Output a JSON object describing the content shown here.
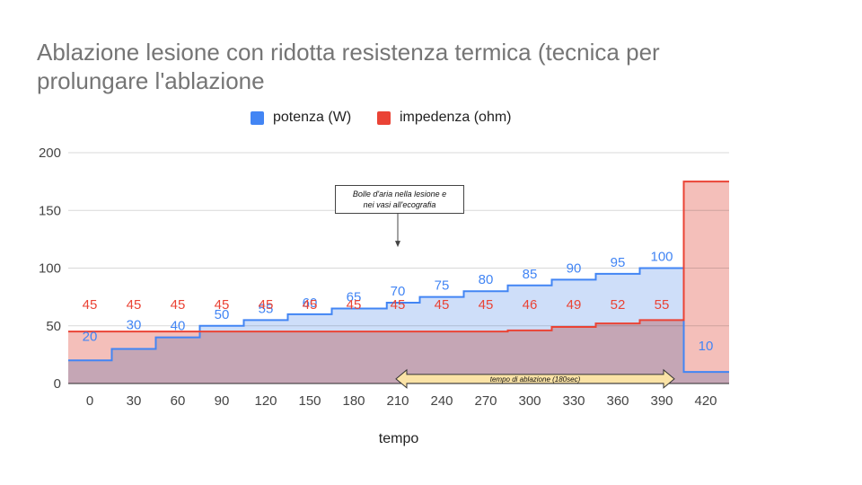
{
  "chart_data": {
    "type": "area",
    "title": "Ablazione lesione con ridotta resistenza termica (tecnica per prolungare l'ablazione",
    "xlabel": "tempo",
    "ylabel": "",
    "categories": [
      "0",
      "30",
      "60",
      "90",
      "120",
      "150",
      "180",
      "210",
      "240",
      "270",
      "300",
      "330",
      "360",
      "390",
      "420"
    ],
    "x_ticks": [
      0,
      30,
      60,
      90,
      120,
      150,
      180,
      210,
      240,
      270,
      300,
      330,
      360,
      390,
      420
    ],
    "ylim": [
      0,
      200
    ],
    "y_ticks": [
      0,
      50,
      100,
      150,
      200
    ],
    "grid": true,
    "legend": "top-center",
    "step": true,
    "series": [
      {
        "name": "potenza (W)",
        "color": "#4285F4",
        "fill": "#c6d8f8",
        "x": [
          0,
          30,
          60,
          90,
          120,
          150,
          180,
          195,
          210,
          240,
          270,
          300,
          330,
          360,
          390,
          420
        ],
        "values": [
          20,
          30,
          40,
          50,
          55,
          60,
          65,
          65,
          70,
          75,
          80,
          85,
          90,
          95,
          100,
          10
        ],
        "labels": [
          "20",
          "30",
          "40",
          "50",
          "55",
          "60",
          "65",
          "",
          "70",
          "75",
          "80",
          "85",
          "90",
          "95",
          "100",
          "10"
        ]
      },
      {
        "name": "impedenza (ohm)",
        "color": "#EA4335",
        "fill": "#f3b8b2",
        "x": [
          0,
          30,
          60,
          90,
          120,
          150,
          180,
          210,
          240,
          270,
          300,
          330,
          360,
          390,
          420
        ],
        "values": [
          45,
          45,
          45,
          45,
          45,
          45,
          45,
          45,
          45,
          45,
          46,
          49,
          52,
          55,
          175
        ],
        "labels": [
          "45",
          "45",
          "45",
          "45",
          "45",
          "45",
          "45",
          "45",
          "45",
          "45",
          "46",
          "49",
          "52",
          "55",
          ""
        ]
      }
    ],
    "annotations": [
      {
        "text_line1": "Bolle d'aria nella lesione e",
        "text_line2": "nei vasi all'ecografia",
        "x": 210,
        "y": 105
      },
      {
        "text": "tempo di ablazione (180sec)",
        "x_start": 210,
        "x_end": 390,
        "y": 11
      }
    ]
  }
}
